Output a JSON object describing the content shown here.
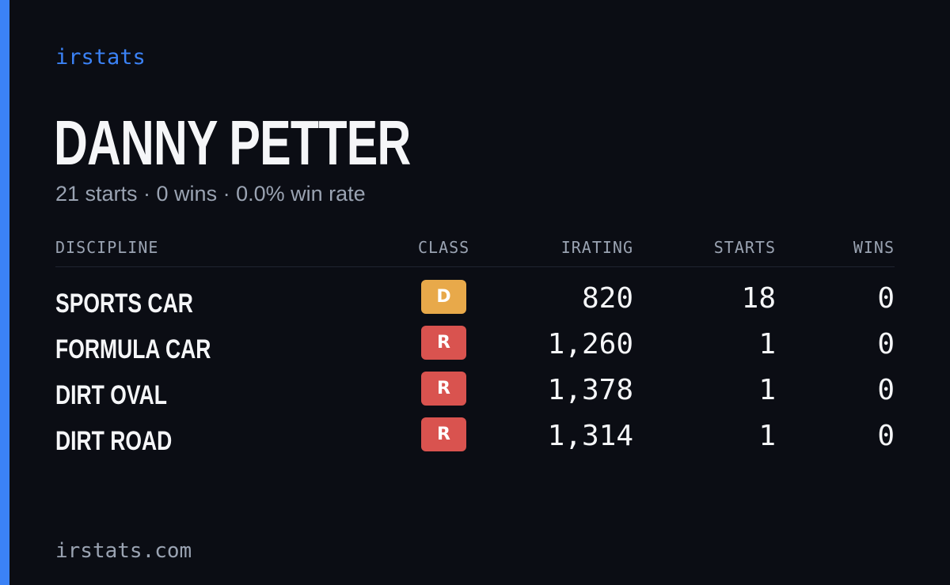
{
  "brand": "irstats",
  "driver": {
    "name": "DANNY PETTER",
    "summary": "21 starts · 0 wins · 0.0% win rate"
  },
  "table": {
    "headers": {
      "discipline": "DISCIPLINE",
      "class": "CLASS",
      "irating": "IRATING",
      "starts": "STARTS",
      "wins": "WINS"
    },
    "rows": [
      {
        "discipline": "SPORTS CAR",
        "class": "D",
        "class_color": "#e8a94a",
        "irating": "820",
        "starts": "18",
        "wins": "0"
      },
      {
        "discipline": "FORMULA CAR",
        "class": "R",
        "class_color": "#d9534f",
        "irating": "1,260",
        "starts": "1",
        "wins": "0"
      },
      {
        "discipline": "DIRT OVAL",
        "class": "R",
        "class_color": "#d9534f",
        "irating": "1,378",
        "starts": "1",
        "wins": "0"
      },
      {
        "discipline": "DIRT ROAD",
        "class": "R",
        "class_color": "#d9534f",
        "irating": "1,314",
        "starts": "1",
        "wins": "0"
      }
    ]
  },
  "footer": "irstats.com",
  "colors": {
    "background": "#0b0d14",
    "accent": "#3b82f6",
    "text_primary": "#f5f6f8",
    "text_muted": "#9aa3b2"
  }
}
